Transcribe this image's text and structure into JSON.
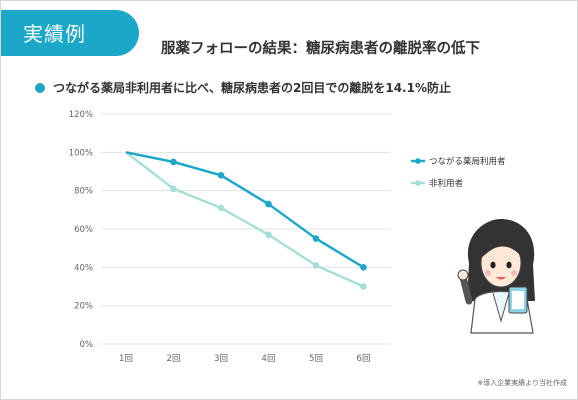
{
  "header": {
    "tab_label": "実績例",
    "title": "服薬フォローの結果：糖尿病患者の離脱率の低下"
  },
  "subtitle": "つながる薬局非利用者に比べ、糖尿病患者の2回目での離脱を14.1%防止",
  "footnote": "※導入企業実績より当社作成",
  "chart_data": {
    "type": "line",
    "categories": [
      "1回",
      "2回",
      "3回",
      "4回",
      "5回",
      "6回"
    ],
    "ylim": [
      0,
      120
    ],
    "yticks": [
      "0%",
      "20%",
      "40%",
      "60%",
      "80%",
      "100%",
      "120%"
    ],
    "grid": true,
    "legend_position": "right",
    "series": [
      {
        "name": "つながる薬局利用者",
        "color": "#1aa7c8",
        "values": [
          100,
          95,
          88,
          73,
          55,
          40
        ]
      },
      {
        "name": "非利用者",
        "color": "#a6dfd6",
        "values": [
          100,
          81,
          71,
          57,
          41,
          30
        ]
      }
    ]
  }
}
